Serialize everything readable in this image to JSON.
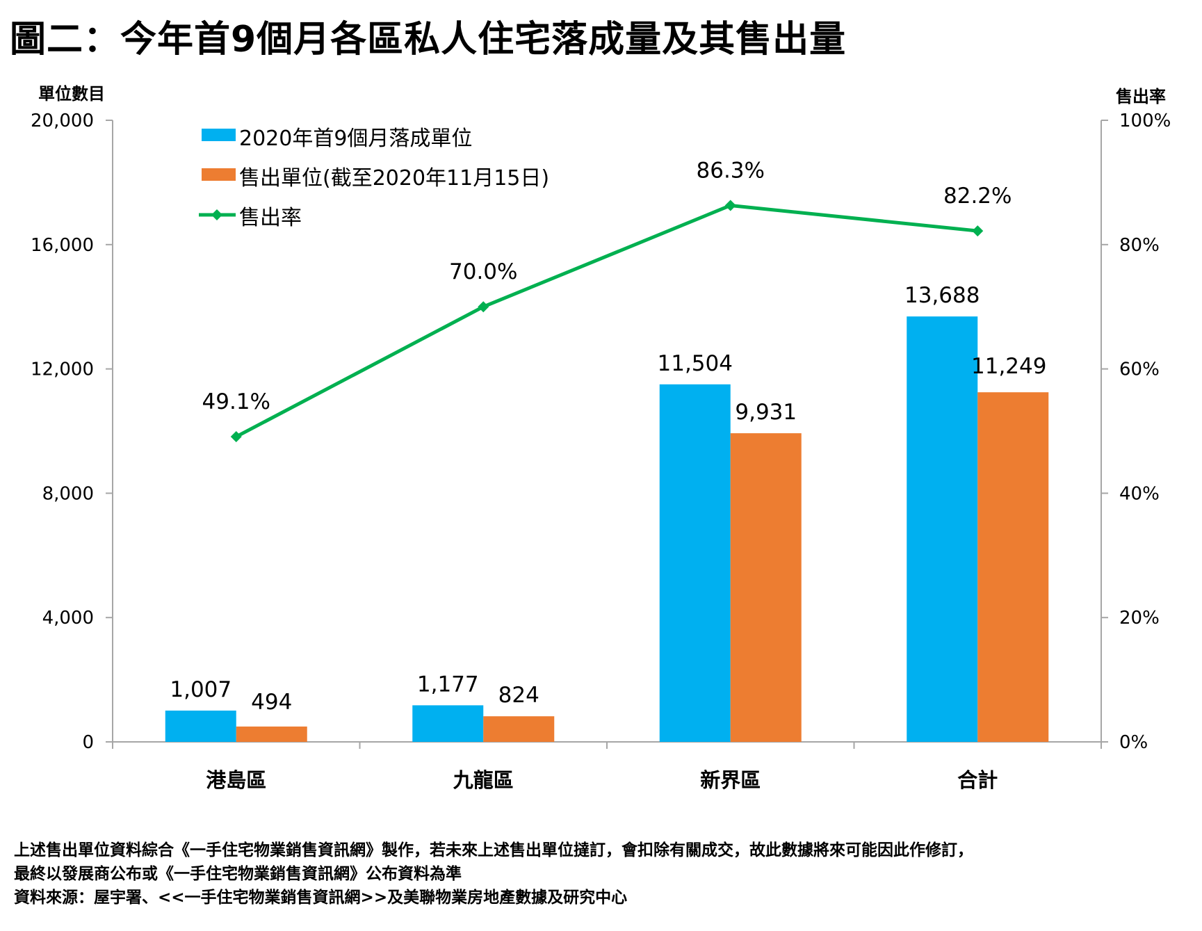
{
  "title": "圖二：今年首9個月各區私人住宅落成量及其售出量",
  "footnotes": [
    "上述售出單位資料綜合《一手住宅物業銷售資訊網》製作，若未來上述售出單位撻訂，會扣除有關成交，故此數據將來可能因此作修訂，",
    "最終以發展商公布或《一手住宅物業銷售資訊網》公布資料為準",
    "資料來源：屋宇署、<<一手住宅物業銷售資訊網>>及美聯物業房地產數據及研究中心"
  ],
  "chart_data": {
    "type": "bar",
    "title": "圖二：今年首9個月各區私人住宅落成量及其售出量",
    "categories": [
      "港島區",
      "九龍區",
      "新界區",
      "合計"
    ],
    "ylabel": "單位數目",
    "ylabel_right": "售出率",
    "ylim": [
      0,
      20000
    ],
    "ylim_right": [
      0,
      100
    ],
    "yticks": [
      0,
      4000,
      8000,
      12000,
      16000,
      20000
    ],
    "ytick_labels": [
      "0",
      "4,000",
      "8,000",
      "12,000",
      "16,000",
      "20,000"
    ],
    "yticks_right": [
      0,
      20,
      40,
      60,
      80,
      100
    ],
    "ytick_labels_right": [
      "0%",
      "20%",
      "40%",
      "60%",
      "80%",
      "100%"
    ],
    "grid": false,
    "legend_position": "top-left",
    "series": [
      {
        "name": "2020年首9個月落成單位",
        "type": "bar",
        "axis": "left",
        "color": "#00B0F0",
        "values": [
          1007,
          1177,
          11504,
          13688
        ],
        "labels": [
          "1,007",
          "1,177",
          "11,504",
          "13,688"
        ]
      },
      {
        "name": "售出單位(截至2020年11月15日)",
        "type": "bar",
        "axis": "left",
        "color": "#ED7D31",
        "values": [
          494,
          824,
          9931,
          11249
        ],
        "labels": [
          "494",
          "824",
          "9,931",
          "11,249"
        ]
      },
      {
        "name": "售出率",
        "type": "line",
        "axis": "right",
        "color": "#00B050",
        "marker": "diamond",
        "values": [
          49.1,
          70.0,
          86.3,
          82.2
        ],
        "labels": [
          "49.1%",
          "70.0%",
          "86.3%",
          "82.2%"
        ]
      }
    ]
  }
}
